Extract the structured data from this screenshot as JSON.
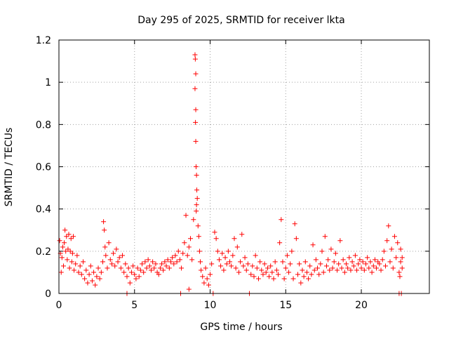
{
  "chart_data": {
    "type": "scatter",
    "title": "Day 295 of 2025, SRMTID for receiver lkta",
    "xlabel": "GPS time / hours",
    "ylabel": "SRMTID / TECUs",
    "xlim": [
      0,
      24.5
    ],
    "ylim": [
      0,
      1.2
    ],
    "xticks": [
      0,
      5,
      10,
      15,
      20
    ],
    "xtick_labels": [
      "0",
      "5",
      "10",
      "15",
      "20"
    ],
    "yticks": [
      0,
      0.2,
      0.4,
      0.6,
      0.8,
      1,
      1.2
    ],
    "ytick_labels": [
      "0",
      "0.2",
      "0.4",
      "0.6",
      "0.8",
      "1",
      "1.2"
    ],
    "grid": true,
    "marker": "+",
    "color": "#ff0000",
    "series": [
      {
        "name": "SRMTID",
        "points": [
          [
            0.05,
            0.25
          ],
          [
            0.1,
            0.19
          ],
          [
            0.15,
            0.1
          ],
          [
            0.2,
            0.17
          ],
          [
            0.25,
            0.22
          ],
          [
            0.3,
            0.13
          ],
          [
            0.35,
            0.24
          ],
          [
            0.4,
            0.3
          ],
          [
            0.45,
            0.2
          ],
          [
            0.5,
            0.27
          ],
          [
            0.55,
            0.16
          ],
          [
            0.6,
            0.21
          ],
          [
            0.65,
            0.28
          ],
          [
            0.7,
            0.12
          ],
          [
            0.75,
            0.2
          ],
          [
            0.8,
            0.26
          ],
          [
            0.85,
            0.15
          ],
          [
            0.9,
            0.19
          ],
          [
            0.95,
            0.27
          ],
          [
            1.0,
            0.11
          ],
          [
            1.1,
            0.14
          ],
          [
            1.2,
            0.18
          ],
          [
            1.3,
            0.1
          ],
          [
            1.4,
            0.13
          ],
          [
            1.5,
            0.09
          ],
          [
            1.6,
            0.15
          ],
          [
            1.7,
            0.07
          ],
          [
            1.8,
            0.11
          ],
          [
            1.9,
            0.05
          ],
          [
            2.0,
            0.09
          ],
          [
            2.1,
            0.13
          ],
          [
            2.2,
            0.06
          ],
          [
            2.3,
            0.1
          ],
          [
            2.4,
            0.04
          ],
          [
            2.5,
            0.08
          ],
          [
            2.6,
            0.12
          ],
          [
            2.7,
            0.07
          ],
          [
            2.8,
            0.1
          ],
          [
            2.9,
            0.15
          ],
          [
            2.95,
            0.34
          ],
          [
            3.0,
            0.3
          ],
          [
            3.05,
            0.22
          ],
          [
            3.1,
            0.18
          ],
          [
            3.2,
            0.12
          ],
          [
            3.3,
            0.24
          ],
          [
            3.4,
            0.16
          ],
          [
            3.5,
            0.14
          ],
          [
            3.6,
            0.19
          ],
          [
            3.7,
            0.13
          ],
          [
            3.8,
            0.21
          ],
          [
            3.9,
            0.15
          ],
          [
            4.0,
            0.17
          ],
          [
            4.1,
            0.12
          ],
          [
            4.2,
            0.18
          ],
          [
            4.3,
            0.1
          ],
          [
            4.4,
            0.14
          ],
          [
            4.5,
            0.08
          ],
          [
            4.6,
            0.12
          ],
          [
            4.7,
            0.05
          ],
          [
            4.8,
            0.1
          ],
          [
            4.5,
            0.0
          ],
          [
            4.9,
            0.13
          ],
          [
            5.0,
            0.09
          ],
          [
            5.1,
            0.07
          ],
          [
            5.2,
            0.12
          ],
          [
            5.3,
            0.08
          ],
          [
            5.4,
            0.11
          ],
          [
            5.5,
            0.14
          ],
          [
            5.6,
            0.1
          ],
          [
            5.7,
            0.15
          ],
          [
            5.8,
            0.12
          ],
          [
            5.9,
            0.16
          ],
          [
            6.0,
            0.13
          ],
          [
            6.1,
            0.11
          ],
          [
            6.2,
            0.15
          ],
          [
            6.3,
            0.12
          ],
          [
            6.4,
            0.14
          ],
          [
            6.5,
            0.1
          ],
          [
            6.6,
            0.09
          ],
          [
            6.7,
            0.12
          ],
          [
            6.8,
            0.14
          ],
          [
            6.9,
            0.11
          ],
          [
            7.0,
            0.15
          ],
          [
            7.1,
            0.13
          ],
          [
            7.2,
            0.16
          ],
          [
            7.3,
            0.12
          ],
          [
            7.4,
            0.15
          ],
          [
            7.5,
            0.17
          ],
          [
            7.6,
            0.14
          ],
          [
            7.7,
            0.18
          ],
          [
            7.8,
            0.15
          ],
          [
            7.9,
            0.2
          ],
          [
            8.0,
            0.16
          ],
          [
            8.05,
            0.0
          ],
          [
            8.1,
            0.12
          ],
          [
            8.2,
            0.19
          ],
          [
            8.3,
            0.24
          ],
          [
            8.4,
            0.37
          ],
          [
            8.5,
            0.18
          ],
          [
            8.6,
            0.02
          ],
          [
            8.6,
            0.22
          ],
          [
            8.7,
            0.26
          ],
          [
            8.8,
            0.16
          ],
          [
            8.9,
            0.35
          ],
          [
            9.0,
            1.13
          ],
          [
            9.02,
            1.11
          ],
          [
            9.05,
            1.04
          ],
          [
            9.0,
            0.97
          ],
          [
            9.05,
            0.87
          ],
          [
            9.03,
            0.81
          ],
          [
            9.05,
            0.72
          ],
          [
            9.07,
            0.6
          ],
          [
            9.1,
            0.56
          ],
          [
            9.12,
            0.49
          ],
          [
            9.15,
            0.45
          ],
          [
            9.1,
            0.42
          ],
          [
            9.08,
            0.39
          ],
          [
            9.2,
            0.32
          ],
          [
            9.25,
            0.27
          ],
          [
            9.3,
            0.2
          ],
          [
            9.35,
            0.15
          ],
          [
            9.4,
            0.11
          ],
          [
            9.5,
            0.08
          ],
          [
            9.6,
            0.05
          ],
          [
            9.7,
            0.12
          ],
          [
            9.8,
            0.07
          ],
          [
            9.9,
            0.04
          ],
          [
            10.0,
            0.09
          ],
          [
            10.1,
            0.14
          ],
          [
            10.2,
            0.0
          ],
          [
            10.3,
            0.29
          ],
          [
            10.4,
            0.26
          ],
          [
            10.5,
            0.2
          ],
          [
            10.6,
            0.16
          ],
          [
            10.7,
            0.13
          ],
          [
            10.8,
            0.19
          ],
          [
            10.9,
            0.11
          ],
          [
            11.0,
            0.17
          ],
          [
            11.1,
            0.14
          ],
          [
            11.2,
            0.2
          ],
          [
            11.3,
            0.15
          ],
          [
            11.4,
            0.13
          ],
          [
            11.5,
            0.18
          ],
          [
            11.6,
            0.26
          ],
          [
            11.7,
            0.12
          ],
          [
            11.8,
            0.22
          ],
          [
            11.9,
            0.1
          ],
          [
            12.0,
            0.15
          ],
          [
            12.1,
            0.28
          ],
          [
            12.2,
            0.13
          ],
          [
            12.3,
            0.17
          ],
          [
            12.4,
            0.11
          ],
          [
            12.5,
            0.14
          ],
          [
            12.6,
            0.0
          ],
          [
            12.7,
            0.09
          ],
          [
            12.8,
            0.13
          ],
          [
            12.9,
            0.08
          ],
          [
            13.0,
            0.18
          ],
          [
            13.1,
            0.12
          ],
          [
            13.2,
            0.07
          ],
          [
            13.3,
            0.15
          ],
          [
            13.4,
            0.11
          ],
          [
            13.5,
            0.09
          ],
          [
            13.6,
            0.14
          ],
          [
            13.7,
            0.1
          ],
          [
            13.8,
            0.12
          ],
          [
            13.9,
            0.08
          ],
          [
            14.0,
            0.13
          ],
          [
            14.1,
            0.1
          ],
          [
            14.2,
            0.07
          ],
          [
            14.3,
            0.15
          ],
          [
            14.4,
            0.11
          ],
          [
            14.5,
            0.09
          ],
          [
            14.6,
            0.24
          ],
          [
            14.7,
            0.35
          ],
          [
            14.8,
            0.15
          ],
          [
            14.9,
            0.07
          ],
          [
            15.0,
            0.12
          ],
          [
            15.1,
            0.18
          ],
          [
            15.2,
            0.1
          ],
          [
            15.3,
            0.14
          ],
          [
            15.4,
            0.2
          ],
          [
            15.5,
            0.07
          ],
          [
            15.6,
            0.33
          ],
          [
            15.7,
            0.26
          ],
          [
            15.8,
            0.09
          ],
          [
            15.9,
            0.14
          ],
          [
            16.0,
            0.05
          ],
          [
            16.1,
            0.11
          ],
          [
            16.2,
            0.08
          ],
          [
            16.3,
            0.15
          ],
          [
            16.4,
            0.1
          ],
          [
            16.5,
            0.07
          ],
          [
            16.6,
            0.13
          ],
          [
            16.7,
            0.09
          ],
          [
            16.8,
            0.23
          ],
          [
            16.9,
            0.11
          ],
          [
            17.0,
            0.16
          ],
          [
            17.1,
            0.12
          ],
          [
            17.2,
            0.09
          ],
          [
            17.3,
            0.14
          ],
          [
            17.4,
            0.2
          ],
          [
            17.5,
            0.1
          ],
          [
            17.6,
            0.27
          ],
          [
            17.7,
            0.13
          ],
          [
            17.8,
            0.16
          ],
          [
            17.9,
            0.11
          ],
          [
            18.0,
            0.21
          ],
          [
            18.1,
            0.12
          ],
          [
            18.2,
            0.15
          ],
          [
            18.3,
            0.19
          ],
          [
            18.4,
            0.11
          ],
          [
            18.5,
            0.14
          ],
          [
            18.6,
            0.25
          ],
          [
            18.7,
            0.12
          ],
          [
            18.8,
            0.16
          ],
          [
            18.9,
            0.1
          ],
          [
            19.0,
            0.14
          ],
          [
            19.1,
            0.12
          ],
          [
            19.2,
            0.17
          ],
          [
            19.3,
            0.11
          ],
          [
            19.4,
            0.15
          ],
          [
            19.5,
            0.13
          ],
          [
            19.6,
            0.18
          ],
          [
            19.7,
            0.11
          ],
          [
            19.8,
            0.14
          ],
          [
            19.9,
            0.16
          ],
          [
            20.0,
            0.12
          ],
          [
            20.1,
            0.15
          ],
          [
            20.2,
            0.11
          ],
          [
            20.3,
            0.14
          ],
          [
            20.4,
            0.17
          ],
          [
            20.5,
            0.12
          ],
          [
            20.6,
            0.15
          ],
          [
            20.7,
            0.1
          ],
          [
            20.8,
            0.13
          ],
          [
            20.9,
            0.16
          ],
          [
            21.0,
            0.12
          ],
          [
            21.1,
            0.15
          ],
          [
            21.2,
            0.14
          ],
          [
            21.3,
            0.11
          ],
          [
            21.4,
            0.16
          ],
          [
            21.5,
            0.2
          ],
          [
            21.6,
            0.13
          ],
          [
            21.7,
            0.25
          ],
          [
            21.8,
            0.32
          ],
          [
            21.9,
            0.15
          ],
          [
            22.0,
            0.21
          ],
          [
            22.1,
            0.12
          ],
          [
            22.2,
            0.27
          ],
          [
            22.3,
            0.17
          ],
          [
            22.4,
            0.24
          ],
          [
            22.5,
            0.1
          ],
          [
            22.6,
            0.15
          ],
          [
            22.65,
            0.0
          ],
          [
            22.7,
            0.12
          ],
          [
            22.6,
            0.21
          ],
          [
            22.55,
            0.08
          ],
          [
            22.5,
            0.0
          ],
          [
            22.7,
            0.17
          ]
        ]
      }
    ]
  }
}
